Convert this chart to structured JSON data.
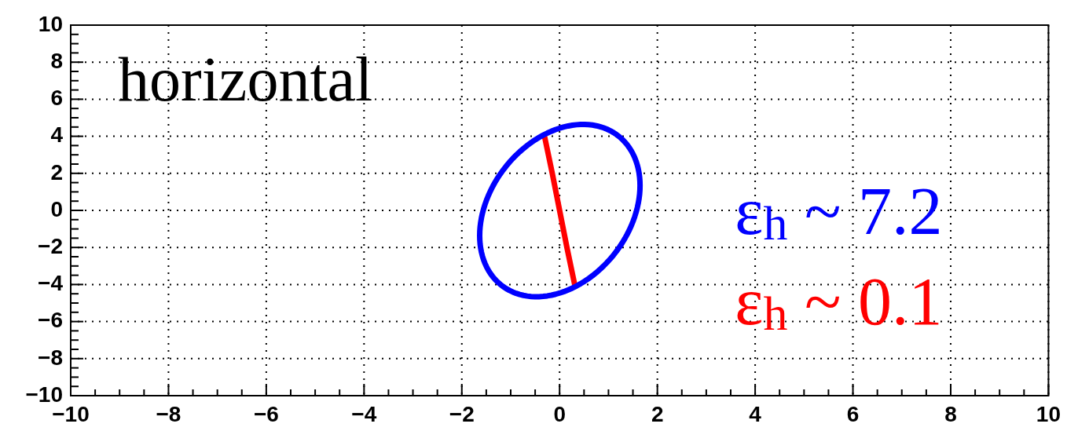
{
  "chart_data": {
    "type": "line",
    "annotations": [
      "horizontal",
      "ε$_{h}$ ~ 7.2"
    ],
    "series": [
      {
        "name": "ε$_{h}$ ~ 0.1",
        "color": "#ff0000",
        "x": [
          -0.31,
          -0.15,
          0,
          0.15,
          0.31
        ],
        "values": [
          4.02,
          2,
          0,
          -2,
          -4.02
        ]
      }
    ],
    "xlim": [
      -10,
      10
    ],
    "ylim": [
      -10,
      10
    ],
    "xticks": [
      -10,
      {
        "value": -9.5,
        "label": null
      },
      {
        "value": -9,
        "label": null
      },
      {
        "value": -8.5,
        "label": null
      },
      -8,
      {
        "value": -7.5,
        "label": null
      },
      {
        "value": -7,
        "label": null
      },
      {
        "value": -6.5,
        "label": null
      },
      -6,
      {
        "value": -5.5,
        "label": null
      },
      {
        "value": -5,
        "label": null
      },
      {
        "value": -4.5,
        "label": null
      },
      -4,
      {
        "value": -3.5,
        "label": null
      },
      {
        "value": -3,
        "label": null
      },
      {
        "value": -2.5,
        "label": null
      },
      -2,
      {
        "value": -1.5,
        "label": null
      },
      {
        "value": -1,
        "label": null
      },
      {
        "value": -0.5,
        "label": null
      },
      0,
      {
        "value": 0.5,
        "label": null
      },
      {
        "value": 1,
        "label": null
      },
      {
        "value": 1.5,
        "label": null
      },
      2,
      {
        "value": 2.5,
        "label": null
      },
      {
        "value": 3,
        "label": null
      },
      {
        "value": 3.5,
        "label": null
      },
      4,
      {
        "value": 4.5,
        "label": null
      },
      {
        "value": 5,
        "label": null
      },
      {
        "value": 5.5,
        "label": null
      },
      6,
      {
        "value": 6.5,
        "label": null
      },
      {
        "value": 7,
        "label": null
      },
      {
        "value": 7.5,
        "label": null
      },
      8,
      {
        "value": 8.5,
        "label": null
      },
      {
        "value": 9,
        "label": null
      },
      {
        "value": 9.5,
        "label": null
      },
      10
    ],
    "yticks": [
      -10,
      {
        "value": -9.5,
        "label": null
      },
      {
        "value": -9,
        "label": null
      },
      {
        "value": -8.5,
        "label": null
      },
      -8,
      {
        "value": -7.5,
        "label": null
      },
      {
        "value": -7,
        "label": null
      },
      {
        "value": -6.5,
        "label": null
      },
      -6,
      {
        "value": -5.5,
        "label": null
      },
      {
        "value": -5,
        "label": null
      },
      {
        "value": -4.5,
        "label": null
      },
      -4,
      {
        "value": -3.5,
        "label": null
      },
      {
        "value": -3,
        "label": null
      },
      {
        "value": -2.5,
        "label": null
      },
      -2,
      {
        "value": -1.5,
        "label": null
      },
      {
        "value": -1,
        "label": null
      },
      {
        "value": -0.5,
        "label": null
      },
      0,
      {
        "value": 0.5,
        "label": null
      },
      {
        "value": 1,
        "label": null
      },
      {
        "value": 1.5,
        "label": null
      },
      2,
      {
        "value": 2.5,
        "label": null
      },
      {
        "value": 3,
        "label": null
      },
      {
        "value": 3.5,
        "label": null
      },
      4,
      {
        "value": 4.5,
        "label": null
      },
      {
        "value": 5,
        "label": null
      },
      {
        "value": 5.5,
        "label": null
      },
      6,
      {
        "value": 6.5,
        "label": null
      },
      {
        "value": 7,
        "label": null
      },
      {
        "value": 7.5,
        "label": null
      },
      8,
      {
        "value": 8.5,
        "label": null
      },
      {
        "value": 9,
        "label": null
      },
      {
        "value": 9.5,
        "label": null
      },
      10
    ],
    "grid": true,
    "legend": "right",
    "marker": "none",
    "line_style": "solid"
  }
}
